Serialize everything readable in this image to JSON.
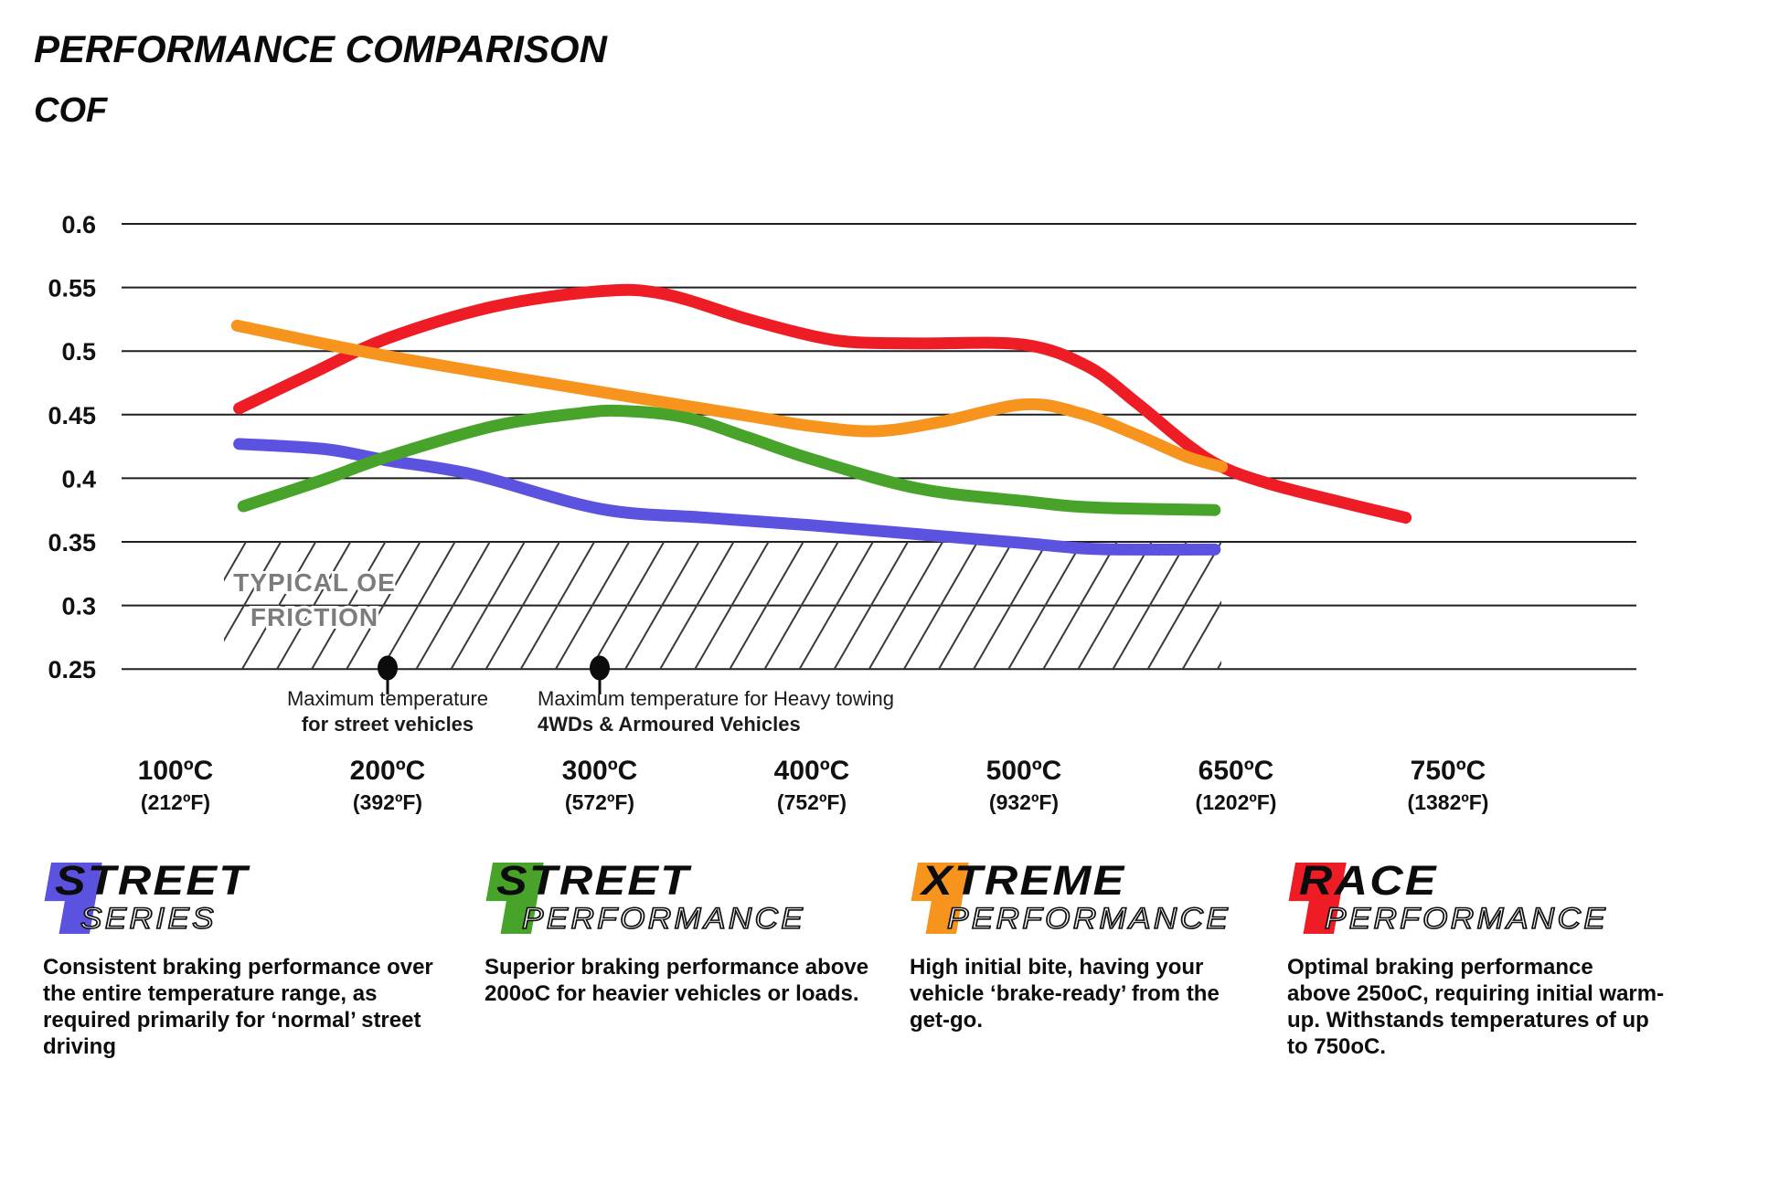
{
  "header": {
    "title": "PERFORMANCE COMPARISON",
    "ylabel": "COF"
  },
  "chart_data": {
    "type": "line",
    "title": "PERFORMANCE COMPARISON",
    "ylabel": "COF",
    "xlabel": "",
    "grid": true,
    "ylim": [
      0.25,
      0.6
    ],
    "ytick_step": 0.05,
    "yticks": [
      "0.6",
      "0.55",
      "0.5",
      "0.45",
      "0.4",
      "0.35",
      "0.3",
      "0.25"
    ],
    "x_ticks": [
      {
        "c": "100ºC",
        "f": "(212ºF)"
      },
      {
        "c": "200ºC",
        "f": "(392ºF)"
      },
      {
        "c": "300ºC",
        "f": "(572ºF)"
      },
      {
        "c": "400ºC",
        "f": "(752ºF)"
      },
      {
        "c": "500ºC",
        "f": "(932ºF)"
      },
      {
        "c": "650ºC",
        "f": "(1202ºF)"
      },
      {
        "c": "750ºC",
        "f": "(1382ºF)"
      }
    ],
    "x_tick_temps": [
      100,
      200,
      300,
      400,
      500,
      650,
      750
    ],
    "series": [
      {
        "name": "Street Series",
        "color": "#5c52e0",
        "z": 1,
        "points": [
          [
            130,
            0.427
          ],
          [
            170,
            0.423
          ],
          [
            200,
            0.414
          ],
          [
            240,
            0.403
          ],
          [
            300,
            0.376
          ],
          [
            350,
            0.369
          ],
          [
            400,
            0.363
          ],
          [
            450,
            0.356
          ],
          [
            500,
            0.349
          ],
          [
            540,
            0.345
          ],
          [
            570,
            0.344
          ],
          [
            635,
            0.344
          ]
        ]
      },
      {
        "name": "Street Performance",
        "color": "#47a32a",
        "z": 2,
        "points": [
          [
            132,
            0.378
          ],
          [
            170,
            0.399
          ],
          [
            200,
            0.417
          ],
          [
            250,
            0.441
          ],
          [
            290,
            0.451
          ],
          [
            310,
            0.453
          ],
          [
            340,
            0.448
          ],
          [
            370,
            0.432
          ],
          [
            400,
            0.415
          ],
          [
            450,
            0.392
          ],
          [
            500,
            0.382
          ],
          [
            550,
            0.377
          ],
          [
            635,
            0.375
          ]
        ]
      },
      {
        "name": "Xtreme Performance",
        "color": "#f7941e",
        "z": 4,
        "points": [
          [
            129,
            0.52
          ],
          [
            200,
            0.496
          ],
          [
            300,
            0.468
          ],
          [
            370,
            0.449
          ],
          [
            400,
            0.441
          ],
          [
            430,
            0.437
          ],
          [
            460,
            0.444
          ],
          [
            500,
            0.458
          ],
          [
            540,
            0.451
          ],
          [
            580,
            0.434
          ],
          [
            615,
            0.417
          ],
          [
            640,
            0.409
          ]
        ]
      },
      {
        "name": "Race Performance",
        "color": "#ee1c25",
        "z": 3,
        "points": [
          [
            130,
            0.455
          ],
          [
            165,
            0.483
          ],
          [
            200,
            0.51
          ],
          [
            250,
            0.535
          ],
          [
            300,
            0.547
          ],
          [
            330,
            0.545
          ],
          [
            370,
            0.525
          ],
          [
            400,
            0.512
          ],
          [
            420,
            0.507
          ],
          [
            450,
            0.506
          ],
          [
            500,
            0.505
          ],
          [
            545,
            0.488
          ],
          [
            580,
            0.459
          ],
          [
            615,
            0.427
          ],
          [
            640,
            0.409
          ],
          [
            665,
            0.396
          ],
          [
            700,
            0.381
          ],
          [
            730,
            0.369
          ]
        ]
      }
    ],
    "oe_band": {
      "label_line1": "TYPICAL OE",
      "label_line2": "FRICTION",
      "cof_top": 0.35,
      "cof_bottom": 0.25
    },
    "annotations": [
      {
        "temp": 200,
        "cof": 0.25,
        "line1": "Maximum temperature",
        "line2": "for street vehicles"
      },
      {
        "temp": 300,
        "cof": 0.25,
        "line1": "Maximum temperature for Heavy towing",
        "line2": "4WDs & Armoured Vehicles"
      }
    ]
  },
  "legend": [
    {
      "word1": "STREET",
      "word2": "SERIES",
      "color": "#5c52e0",
      "description": "Consistent braking performance over\nthe entire temperature range, as\nrequired primarily for ‘normal’ street\ndriving"
    },
    {
      "word1": "STREET",
      "word2": "PERFORMANCE",
      "color": "#47a32a",
      "description": "Superior braking performance above\n200oC for heavier vehicles or loads."
    },
    {
      "word1": "XTREME",
      "word2": "PERFORMANCE",
      "color": "#f7941e",
      "description": "High initial bite, having your\nvehicle ‘brake-ready’ from the\nget-go."
    },
    {
      "word1": "RACE",
      "word2": "PERFORMANCE",
      "color": "#ee1c25",
      "description": "Optimal braking performance\nabove 250oC, requiring initial warm-\nup. Withstands temperatures of up\nto 750oC."
    }
  ]
}
